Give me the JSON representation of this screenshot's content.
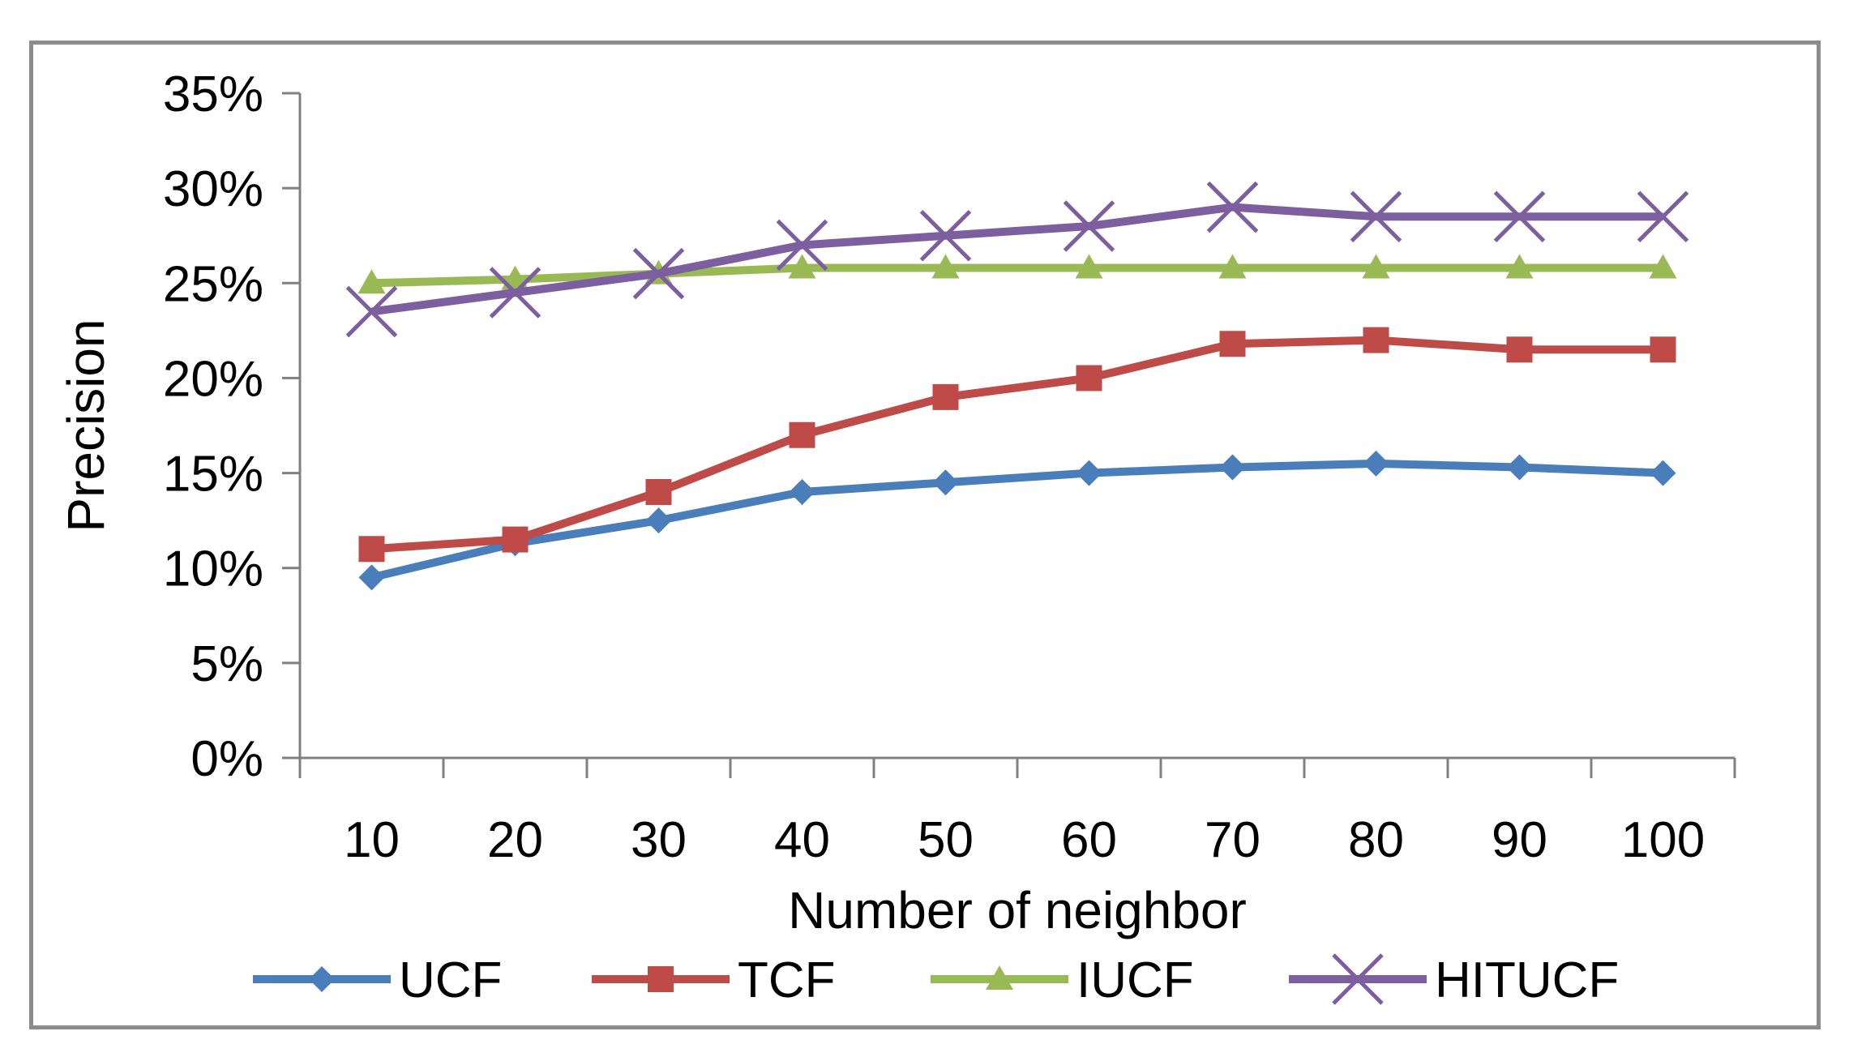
{
  "chart_data": {
    "type": "line",
    "title": "",
    "xlabel": "Number of neighbor",
    "ylabel": "Precision",
    "categories": [
      "10",
      "20",
      "30",
      "40",
      "50",
      "60",
      "70",
      "80",
      "90",
      "100"
    ],
    "yticks": [
      "0%",
      "5%",
      "10%",
      "15%",
      "20%",
      "25%",
      "30%",
      "35%"
    ],
    "ylim": [
      0,
      35
    ],
    "grid": false,
    "legend_position": "bottom",
    "series": [
      {
        "name": "UCF",
        "color": "#4a7ebb",
        "marker": "diamond",
        "values": [
          9.5,
          11.3,
          12.5,
          14.0,
          14.5,
          15.0,
          15.3,
          15.5,
          15.3,
          15.0
        ]
      },
      {
        "name": "TCF",
        "color": "#be4b48",
        "marker": "square",
        "values": [
          11.0,
          11.5,
          14.0,
          17.0,
          19.0,
          20.0,
          21.8,
          22.0,
          21.5,
          21.5
        ]
      },
      {
        "name": "IUCF",
        "color": "#98b954",
        "marker": "triangle",
        "values": [
          25.0,
          25.2,
          25.5,
          25.8,
          25.8,
          25.8,
          25.8,
          25.8,
          25.8,
          25.8
        ]
      },
      {
        "name": "HITUCF",
        "color": "#7d5fa0",
        "marker": "x",
        "values": [
          23.5,
          24.5,
          25.5,
          27.0,
          27.5,
          28.0,
          29.0,
          28.5,
          28.5,
          28.5
        ]
      }
    ]
  }
}
